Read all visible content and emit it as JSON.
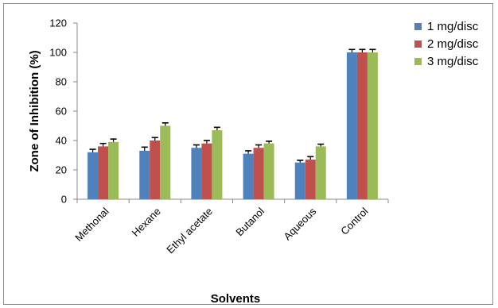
{
  "chart_data": {
    "type": "bar",
    "title": "",
    "xlabel": "Solvents",
    "ylabel": "Zone of Inhibition (%)",
    "ylim": [
      0,
      120
    ],
    "yticks": [
      0,
      20,
      40,
      60,
      80,
      100,
      120
    ],
    "ytick_labels": [
      "0",
      "20",
      "40",
      "60",
      "80",
      "100",
      "120"
    ],
    "grid": false,
    "legend_position": "top-right",
    "categories": [
      "Methonal",
      "Hexane",
      "Ethyl acetate",
      "Butanol",
      "Aqueous",
      "Control"
    ],
    "series": [
      {
        "name": "1 mg/disc",
        "color": "#4f81bd",
        "values": [
          32,
          33,
          35,
          31,
          25,
          100
        ],
        "errors": [
          2,
          2.5,
          2,
          2,
          1.5,
          2
        ]
      },
      {
        "name": "2 mg/disc",
        "color": "#c0504d",
        "values": [
          36,
          40,
          38,
          35,
          27,
          100
        ],
        "errors": [
          2,
          2,
          2,
          2,
          2,
          2
        ]
      },
      {
        "name": "3 mg/disc",
        "color": "#9bbb59",
        "values": [
          39,
          50,
          47,
          38,
          36,
          100
        ],
        "errors": [
          2,
          2,
          2,
          1.5,
          1.5,
          2
        ]
      }
    ]
  }
}
